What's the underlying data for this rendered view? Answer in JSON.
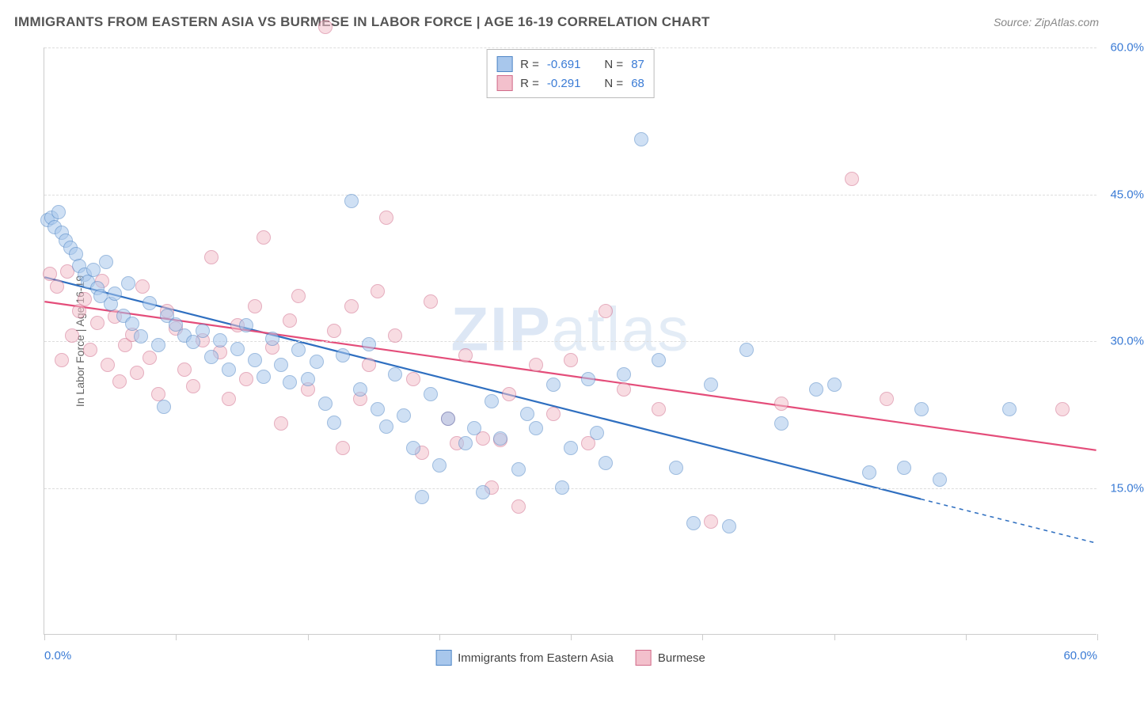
{
  "title": "IMMIGRANTS FROM EASTERN ASIA VS BURMESE IN LABOR FORCE | AGE 16-19 CORRELATION CHART",
  "source_label": "Source: ZipAtlas.com",
  "watermark": {
    "bold": "ZIP",
    "light": "atlas"
  },
  "ylabel": "In Labor Force | Age 16-19",
  "chart": {
    "type": "scatter",
    "xlim": [
      0,
      60
    ],
    "ylim": [
      0,
      60
    ],
    "xticks": [
      0,
      7.5,
      15,
      22.5,
      30,
      37.5,
      45,
      52.5,
      60
    ],
    "xticks_labeled": [
      {
        "v": 0,
        "label": "0.0%"
      },
      {
        "v": 60,
        "label": "60.0%"
      }
    ],
    "yticks": [
      {
        "v": 15,
        "label": "15.0%"
      },
      {
        "v": 30,
        "label": "30.0%"
      },
      {
        "v": 45,
        "label": "45.0%"
      },
      {
        "v": 60,
        "label": "60.0%"
      }
    ],
    "grid_color": "#dddddd",
    "background": "#ffffff",
    "point_radius": 9,
    "point_opacity": 0.55,
    "axis_label_color": "#3a7bd5",
    "series": [
      {
        "name": "Immigrants from Eastern Asia",
        "fill": "#a8c7ec",
        "stroke": "#4f86c6",
        "trend": {
          "x1": 0,
          "y1": 36.5,
          "x2": 50,
          "y2": 13.8,
          "dash_from_x": 50,
          "dash_to_x": 60,
          "dash_to_y": 9.3,
          "stroke": "#2f6fc0",
          "width": 2.2
        },
        "R": "-0.691",
        "N": "87",
        "points": [
          [
            0.2,
            42.3
          ],
          [
            0.4,
            42.5
          ],
          [
            0.6,
            41.6
          ],
          [
            0.8,
            43.1
          ],
          [
            1.0,
            41.0
          ],
          [
            1.2,
            40.2
          ],
          [
            1.5,
            39.5
          ],
          [
            1.8,
            38.8
          ],
          [
            2.0,
            37.6
          ],
          [
            2.3,
            36.7
          ],
          [
            2.5,
            36.0
          ],
          [
            2.8,
            37.2
          ],
          [
            3.0,
            35.3
          ],
          [
            3.2,
            34.5
          ],
          [
            3.5,
            38.0
          ],
          [
            3.8,
            33.7
          ],
          [
            4.0,
            34.8
          ],
          [
            4.5,
            32.5
          ],
          [
            4.8,
            35.8
          ],
          [
            5.0,
            31.7
          ],
          [
            5.5,
            30.4
          ],
          [
            6.0,
            33.8
          ],
          [
            6.5,
            29.5
          ],
          [
            6.8,
            23.2
          ],
          [
            7.0,
            32.5
          ],
          [
            7.5,
            31.6
          ],
          [
            8.0,
            30.5
          ],
          [
            8.5,
            29.8
          ],
          [
            9.0,
            31.0
          ],
          [
            9.5,
            28.3
          ],
          [
            10,
            30.0
          ],
          [
            10.5,
            27.0
          ],
          [
            11,
            29.1
          ],
          [
            11.5,
            31.5
          ],
          [
            12,
            28.0
          ],
          [
            12.5,
            26.3
          ],
          [
            13,
            30.2
          ],
          [
            13.5,
            27.5
          ],
          [
            14,
            25.7
          ],
          [
            14.5,
            29.0
          ],
          [
            15,
            26.0
          ],
          [
            15.5,
            27.8
          ],
          [
            16,
            23.5
          ],
          [
            16.5,
            21.6
          ],
          [
            17,
            28.5
          ],
          [
            17.5,
            44.2
          ],
          [
            18,
            25.0
          ],
          [
            18.5,
            29.6
          ],
          [
            19,
            23.0
          ],
          [
            19.5,
            21.2
          ],
          [
            20,
            26.5
          ],
          [
            20.5,
            22.3
          ],
          [
            21,
            19.0
          ],
          [
            21.5,
            14.0
          ],
          [
            22,
            24.5
          ],
          [
            22.5,
            17.2
          ],
          [
            23,
            22.0
          ],
          [
            24,
            19.5
          ],
          [
            24.5,
            21.0
          ],
          [
            25,
            14.5
          ],
          [
            25.5,
            23.8
          ],
          [
            26,
            20.0
          ],
          [
            27,
            16.8
          ],
          [
            27.5,
            22.5
          ],
          [
            28,
            21.0
          ],
          [
            29,
            25.5
          ],
          [
            29.5,
            15.0
          ],
          [
            30,
            19.0
          ],
          [
            31,
            26.0
          ],
          [
            31.5,
            20.5
          ],
          [
            32,
            17.5
          ],
          [
            33,
            26.5
          ],
          [
            34,
            50.5
          ],
          [
            35,
            28.0
          ],
          [
            36,
            17.0
          ],
          [
            37,
            11.3
          ],
          [
            38,
            25.5
          ],
          [
            39,
            11.0
          ],
          [
            40,
            29.0
          ],
          [
            42,
            21.5
          ],
          [
            44,
            25.0
          ],
          [
            45,
            25.5
          ],
          [
            47,
            16.5
          ],
          [
            49,
            17.0
          ],
          [
            50,
            23.0
          ],
          [
            51,
            15.8
          ],
          [
            55,
            23.0
          ]
        ]
      },
      {
        "name": "Burmese",
        "fill": "#f3c0cc",
        "stroke": "#d16b8a",
        "trend": {
          "x1": 0,
          "y1": 34.0,
          "x2": 60,
          "y2": 18.8,
          "stroke": "#e44d7a",
          "width": 2.2
        },
        "R": "-0.291",
        "N": "68",
        "points": [
          [
            0.3,
            36.8
          ],
          [
            0.7,
            35.5
          ],
          [
            1.0,
            28.0
          ],
          [
            1.3,
            37.0
          ],
          [
            1.6,
            30.5
          ],
          [
            2.0,
            33.0
          ],
          [
            2.3,
            34.2
          ],
          [
            2.6,
            29.0
          ],
          [
            3.0,
            31.8
          ],
          [
            3.3,
            36.1
          ],
          [
            3.6,
            27.5
          ],
          [
            4.0,
            32.4
          ],
          [
            4.3,
            25.8
          ],
          [
            4.6,
            29.5
          ],
          [
            5.0,
            30.6
          ],
          [
            5.3,
            26.7
          ],
          [
            5.6,
            35.5
          ],
          [
            6.0,
            28.2
          ],
          [
            6.5,
            24.5
          ],
          [
            7.0,
            33.0
          ],
          [
            7.5,
            31.2
          ],
          [
            8.0,
            27.0
          ],
          [
            8.5,
            25.3
          ],
          [
            9.0,
            30.0
          ],
          [
            9.5,
            38.5
          ],
          [
            10,
            28.8
          ],
          [
            10.5,
            24.0
          ],
          [
            11,
            31.5
          ],
          [
            11.5,
            26.0
          ],
          [
            12,
            33.5
          ],
          [
            12.5,
            40.5
          ],
          [
            13,
            29.3
          ],
          [
            13.5,
            21.5
          ],
          [
            14,
            32.0
          ],
          [
            14.5,
            34.5
          ],
          [
            15,
            25.0
          ],
          [
            16,
            62.0
          ],
          [
            16.5,
            31.0
          ],
          [
            17,
            19.0
          ],
          [
            17.5,
            33.5
          ],
          [
            18,
            24.0
          ],
          [
            18.5,
            27.5
          ],
          [
            19,
            35.0
          ],
          [
            19.5,
            42.5
          ],
          [
            20,
            30.5
          ],
          [
            21,
            26.0
          ],
          [
            21.5,
            18.5
          ],
          [
            22,
            34.0
          ],
          [
            23,
            22.0
          ],
          [
            23.5,
            19.5
          ],
          [
            24,
            28.5
          ],
          [
            25,
            20.0
          ],
          [
            25.5,
            15.0
          ],
          [
            26,
            19.8
          ],
          [
            26.5,
            24.5
          ],
          [
            27,
            13.0
          ],
          [
            28,
            27.5
          ],
          [
            29,
            22.5
          ],
          [
            30,
            28.0
          ],
          [
            31,
            19.5
          ],
          [
            32,
            33.0
          ],
          [
            33,
            25.0
          ],
          [
            35,
            23.0
          ],
          [
            38,
            11.5
          ],
          [
            42,
            23.5
          ],
          [
            46,
            46.5
          ],
          [
            48,
            24.0
          ],
          [
            58,
            23.0
          ]
        ]
      }
    ]
  },
  "stats_box": {
    "rows": [
      {
        "swatch_fill": "#a8c7ec",
        "swatch_stroke": "#4f86c6",
        "R_label": "R =",
        "R": "-0.691",
        "N_label": "N =",
        "N": "87"
      },
      {
        "swatch_fill": "#f3c0cc",
        "swatch_stroke": "#d16b8a",
        "R_label": "R =",
        "R": "-0.291",
        "N_label": "N =",
        "N": "68"
      }
    ]
  },
  "bottom_legend": [
    {
      "fill": "#a8c7ec",
      "stroke": "#4f86c6",
      "label": "Immigrants from Eastern Asia"
    },
    {
      "fill": "#f3c0cc",
      "stroke": "#d16b8a",
      "label": "Burmese"
    }
  ]
}
